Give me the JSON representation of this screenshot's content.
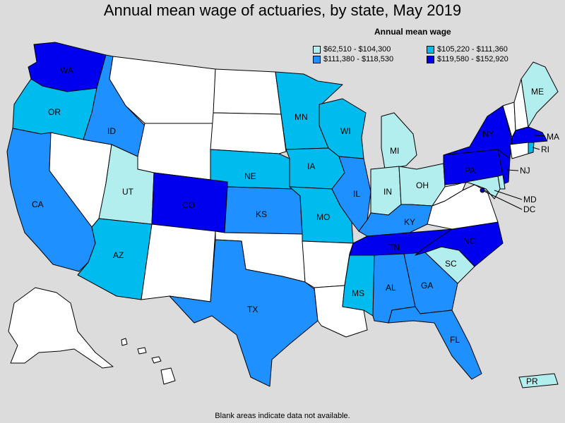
{
  "title": "Annual mean wage of actuaries, by state, May 2019",
  "legend": {
    "title": "Annual mean wage",
    "items": [
      {
        "range": "$62,510 - $104,300",
        "color": "#b2eeee"
      },
      {
        "range": "$105,220 - $111,360",
        "color": "#00bbee"
      },
      {
        "range": "$111,380 - $118,530",
        "color": "#1e90ff"
      },
      {
        "range": "$119,580 - $152,920",
        "color": "#0000ee"
      }
    ]
  },
  "no_data_color": "#ffffff",
  "note": "Blank areas indicate data not available.",
  "states": {
    "WA": {
      "label": "WA",
      "tier": 3
    },
    "OR": {
      "label": "OR",
      "tier": 1
    },
    "CA": {
      "label": "CA",
      "tier": 2
    },
    "ID": {
      "label": "ID",
      "tier": 2
    },
    "NV": {
      "label": "",
      "tier": null
    },
    "MT": {
      "label": "",
      "tier": null
    },
    "WY": {
      "label": "",
      "tier": null
    },
    "UT": {
      "label": "UT",
      "tier": 0
    },
    "AZ": {
      "label": "AZ",
      "tier": 1
    },
    "CO": {
      "label": "CO",
      "tier": 3
    },
    "NM": {
      "label": "",
      "tier": null
    },
    "ND": {
      "label": "",
      "tier": null
    },
    "SD": {
      "label": "",
      "tier": null
    },
    "NE": {
      "label": "NE",
      "tier": 1
    },
    "KS": {
      "label": "KS",
      "tier": 2
    },
    "OK": {
      "label": "",
      "tier": null
    },
    "TX": {
      "label": "TX",
      "tier": 2
    },
    "MN": {
      "label": "MN",
      "tier": 1
    },
    "IA": {
      "label": "IA",
      "tier": 1
    },
    "MO": {
      "label": "MO",
      "tier": 1
    },
    "AR": {
      "label": "",
      "tier": null
    },
    "LA": {
      "label": "",
      "tier": null
    },
    "WI": {
      "label": "WI",
      "tier": 1
    },
    "IL": {
      "label": "IL",
      "tier": 2
    },
    "MI": {
      "label": "MI",
      "tier": 0
    },
    "IN": {
      "label": "IN",
      "tier": 0
    },
    "OH": {
      "label": "OH",
      "tier": 0
    },
    "KY": {
      "label": "KY",
      "tier": 2
    },
    "TN": {
      "label": "TN",
      "tier": 3
    },
    "MS": {
      "label": "MS",
      "tier": 1
    },
    "AL": {
      "label": "AL",
      "tier": 2
    },
    "GA": {
      "label": "GA",
      "tier": 2
    },
    "FL": {
      "label": "FL",
      "tier": 2
    },
    "SC": {
      "label": "SC",
      "tier": 0
    },
    "NC": {
      "label": "NC",
      "tier": 3
    },
    "VA": {
      "label": "",
      "tier": null
    },
    "WV": {
      "label": "",
      "tier": null
    },
    "PA": {
      "label": "PA",
      "tier": 3
    },
    "NY": {
      "label": "NY",
      "tier": 3
    },
    "VT": {
      "label": "",
      "tier": null
    },
    "NH": {
      "label": "",
      "tier": null
    },
    "ME": {
      "label": "ME",
      "tier": 0
    },
    "MA": {
      "label": "MA",
      "tier": 3
    },
    "RI": {
      "label": "RI",
      "tier": 1
    },
    "CT": {
      "label": "",
      "tier": null
    },
    "NJ": {
      "label": "NJ",
      "tier": 3
    },
    "DE": {
      "label": "",
      "tier": 0
    },
    "MD": {
      "label": "MD",
      "tier": 0
    },
    "DC": {
      "label": "DC",
      "tier": 3
    },
    "AK": {
      "label": "",
      "tier": null
    },
    "HI": {
      "label": "",
      "tier": null
    },
    "PR": {
      "label": "PR",
      "tier": 0
    }
  }
}
